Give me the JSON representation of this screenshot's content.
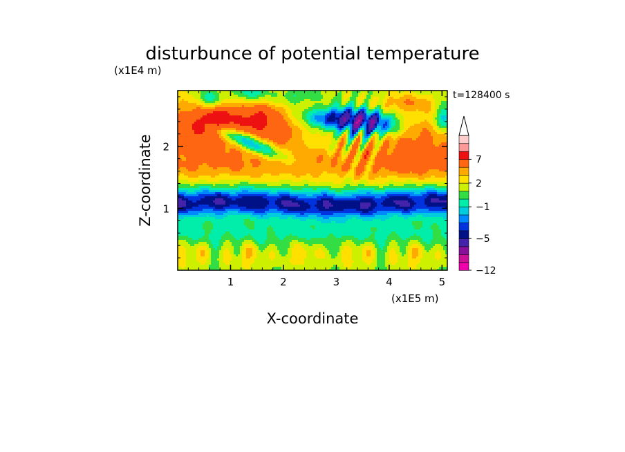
{
  "chart_data": {
    "type": "heatmap",
    "title": "disturbunce of potential temperature",
    "xlabel": "X-coordinate",
    "ylabel": "Z-coordinate",
    "x_unit": "(x1E5 m)",
    "y_unit": "(x1E4 m)",
    "time_label": "t=128400 s",
    "xlim": [
      0,
      5.1
    ],
    "ylim": [
      0,
      2.9
    ],
    "xticks": [
      "1",
      "2",
      "3",
      "4",
      "5"
    ],
    "yticks": [
      "1",
      "2"
    ],
    "colorbar": {
      "tick_labels": [
        "7",
        "2",
        "−1",
        "−5",
        "−12"
      ],
      "levels": [
        -12,
        -10,
        -8,
        -6,
        -5,
        -4,
        -3,
        -2,
        -1,
        0,
        1,
        2,
        3,
        5,
        7,
        9
      ],
      "colors": [
        "#ee00aa",
        "#cc1199",
        "#881199",
        "#4422aa",
        "#001188",
        "#0033dd",
        "#0088ff",
        "#00ccdd",
        "#00eeaa",
        "#33dd44",
        "#ccf000",
        "#ffe000",
        "#ffaa00",
        "#ff6611",
        "#ee1111",
        "#ff9999",
        "#ffcccc"
      ],
      "extend": "max"
    }
  }
}
